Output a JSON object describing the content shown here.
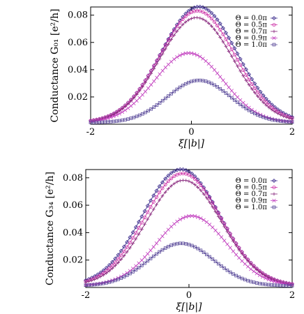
{
  "chart_data": [
    {
      "type": "scatter",
      "xlabel": "ξ[|b|]",
      "ylabel": "Conductance G₀₁ [e²/h]",
      "xlim": [
        -2,
        2
      ],
      "ylim": [
        0,
        0.086
      ],
      "xticks": [
        "-2",
        "0",
        "2"
      ],
      "yticks": [
        "0.02",
        "0.04",
        "0.06",
        "0.08"
      ],
      "legend_position": "top-right",
      "series": [
        {
          "name": "Θ = 0.0π",
          "peak_x": 0.15,
          "peak_y": 0.085,
          "width": 0.75
        },
        {
          "name": "Θ = 0.5π",
          "peak_x": 0.12,
          "peak_y": 0.082,
          "width": 0.74
        },
        {
          "name": "Θ = 0.7π",
          "peak_x": 0.1,
          "peak_y": 0.077,
          "width": 0.73
        },
        {
          "name": "Θ = 0.9π",
          "peak_x": -0.05,
          "peak_y": 0.051,
          "width": 0.68
        },
        {
          "name": "Θ = 1.0π",
          "peak_x": 0.15,
          "peak_y": 0.031,
          "width": 0.63
        }
      ]
    },
    {
      "type": "scatter",
      "xlabel": "ξ[|b|]",
      "ylabel": "Conductance G₃₄ [e²/h]",
      "xlim": [
        -2,
        2
      ],
      "ylim": [
        0,
        0.086
      ],
      "xticks": [
        "-2",
        "0",
        "2"
      ],
      "yticks": [
        "0.02",
        "0.04",
        "0.06",
        "0.08"
      ],
      "legend_position": "top-right",
      "series": [
        {
          "name": "Θ = 0.0π",
          "peak_x": -0.15,
          "peak_y": 0.085,
          "width": 0.75
        },
        {
          "name": "Θ = 0.5π",
          "peak_x": -0.12,
          "peak_y": 0.082,
          "width": 0.74
        },
        {
          "name": "Θ = 0.7π",
          "peak_x": -0.1,
          "peak_y": 0.077,
          "width": 0.73
        },
        {
          "name": "Θ = 0.9π",
          "peak_x": 0.05,
          "peak_y": 0.051,
          "width": 0.68
        },
        {
          "name": "Θ = 1.0π",
          "peak_x": -0.15,
          "peak_y": 0.031,
          "width": 0.63
        }
      ]
    }
  ],
  "colors": [
    "#3a2a8c",
    "#cc2fa6",
    "#8a2b7f",
    "#c23fbf",
    "#5a4a9a"
  ],
  "markers": [
    "diamond",
    "circle",
    "plus",
    "cross",
    "square"
  ]
}
